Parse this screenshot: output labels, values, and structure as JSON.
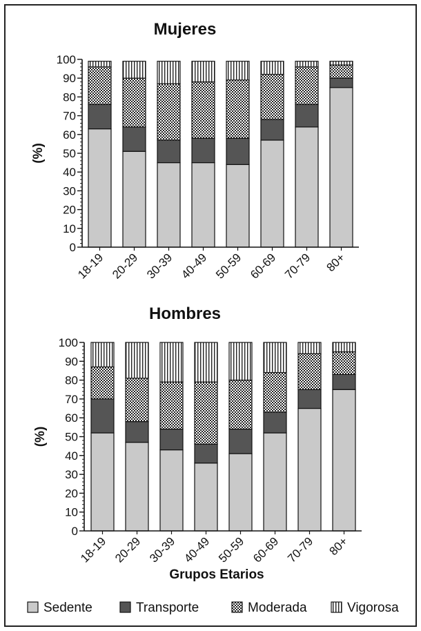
{
  "figure": {
    "xlabel": "Grupos Etarios",
    "legend_position": "bottom"
  },
  "chart_data": [
    {
      "type": "bar",
      "stacked": true,
      "title": "Mujeres",
      "ylabel": "(%)",
      "ylim": [
        0,
        100
      ],
      "yticks": [
        0,
        10,
        20,
        30,
        40,
        50,
        60,
        70,
        80,
        90,
        100
      ],
      "categories": [
        "18-19",
        "20-29",
        "30-39",
        "40-49",
        "50-59",
        "60-69",
        "70-79",
        "80+"
      ],
      "series": [
        {
          "name": "Sedente",
          "pattern": "solid-gray",
          "values": [
            63,
            51,
            45,
            45,
            44,
            57,
            64,
            85
          ]
        },
        {
          "name": "Transporte",
          "pattern": "solid-dark-gray",
          "values": [
            13,
            13,
            12,
            13,
            14,
            11,
            12,
            5
          ]
        },
        {
          "name": "Moderada",
          "pattern": "checkered",
          "values": [
            20,
            26,
            30,
            30,
            31,
            24,
            20,
            7
          ]
        },
        {
          "name": "Vigorosa",
          "pattern": "vertical-lines",
          "values": [
            3,
            9,
            12,
            11,
            10,
            7,
            3,
            2
          ]
        }
      ]
    },
    {
      "type": "bar",
      "stacked": true,
      "title": "Hombres",
      "ylabel": "(%)",
      "ylim": [
        0,
        100
      ],
      "yticks": [
        0,
        10,
        20,
        30,
        40,
        50,
        60,
        70,
        80,
        90,
        100
      ],
      "categories": [
        "18-19",
        "20-29",
        "30-39",
        "40-49",
        "50-59",
        "60-69",
        "70-79",
        "80+"
      ],
      "series": [
        {
          "name": "Sedente",
          "pattern": "solid-gray",
          "values": [
            52,
            47,
            43,
            36,
            41,
            52,
            65,
            75
          ]
        },
        {
          "name": "Transporte",
          "pattern": "solid-dark-gray",
          "values": [
            18,
            11,
            11,
            10,
            13,
            11,
            10,
            8
          ]
        },
        {
          "name": "Moderada",
          "pattern": "checkered",
          "values": [
            17,
            23,
            25,
            33,
            26,
            21,
            19,
            12
          ]
        },
        {
          "name": "Vigorosa",
          "pattern": "vertical-lines",
          "values": [
            13,
            19,
            21,
            21,
            20,
            16,
            6,
            5
          ]
        }
      ]
    }
  ],
  "legend": {
    "items": [
      {
        "label": "Sedente",
        "pattern": "solid-gray"
      },
      {
        "label": "Transporte",
        "pattern": "solid-dark-gray"
      },
      {
        "label": "Moderada",
        "pattern": "checkered"
      },
      {
        "label": "Vigorosa",
        "pattern": "vertical-lines"
      }
    ]
  },
  "colors": {
    "sedente": "#c9c9c9",
    "transporte": "#555555",
    "axis": "#111111",
    "frame": "#222222"
  }
}
